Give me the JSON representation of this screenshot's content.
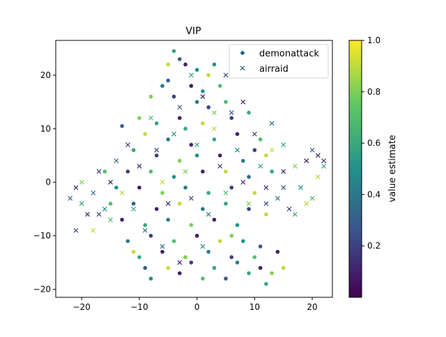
{
  "chart_data": {
    "type": "scatter",
    "title": "VIP",
    "xlabel": "",
    "ylabel": "",
    "xlim": [
      -24.5,
      23.5
    ],
    "ylim": [
      -21.5,
      26.5
    ],
    "xticks": [
      -20,
      -10,
      0,
      10,
      20
    ],
    "yticks": [
      -20,
      -10,
      0,
      10,
      20
    ],
    "legend_position": "top-right",
    "colorbar": {
      "label": "value estimate",
      "range": [
        0.0,
        1.0
      ],
      "ticks": [
        0.2,
        0.4,
        0.6,
        0.8,
        1.0
      ],
      "tick_labels": [
        "0.2",
        "0.4",
        "0.6",
        "0.8",
        "1.0"
      ],
      "colormap": "viridis",
      "colors": [
        "#440154",
        "#3b528b",
        "#21918c",
        "#5ec962",
        "#fde725"
      ]
    },
    "series": [
      {
        "name": "demonattack",
        "marker": "circle",
        "points": [
          [
            -4,
            24.5,
            0.6
          ],
          [
            -3,
            23,
            0.3
          ],
          [
            -5,
            22,
            0.9
          ],
          [
            -2,
            22,
            0.1
          ],
          [
            0,
            21,
            0.5
          ],
          [
            2,
            20,
            0.9
          ],
          [
            -6,
            18,
            0.4
          ],
          [
            -1,
            18,
            0.1
          ],
          [
            1,
            17,
            0.5
          ],
          [
            4,
            18,
            0.7
          ],
          [
            -8,
            16,
            0.8
          ],
          [
            -4,
            16,
            0.2
          ],
          [
            0,
            15,
            0.4
          ],
          [
            2,
            14,
            0.2
          ],
          [
            5,
            15,
            0.7
          ],
          [
            -10,
            12,
            0.8
          ],
          [
            -7,
            11,
            0.6
          ],
          [
            -3,
            12,
            0.1
          ],
          [
            1,
            11,
            0.9
          ],
          [
            6,
            12,
            0.2
          ],
          [
            9,
            13,
            0.6
          ],
          [
            -13,
            10.5,
            0.3
          ],
          [
            -9,
            9,
            0.9
          ],
          [
            -5,
            8,
            0.4
          ],
          [
            -1,
            7,
            0.1
          ],
          [
            3,
            8,
            0.6
          ],
          [
            7,
            9,
            0.1
          ],
          [
            11,
            8,
            0.7
          ],
          [
            -11,
            6,
            0.6
          ],
          [
            -7,
            5,
            0.2
          ],
          [
            -3,
            4,
            0.8
          ],
          [
            0,
            5,
            0.5
          ],
          [
            4,
            5,
            0.1
          ],
          [
            8,
            4,
            0.4
          ],
          [
            12,
            5,
            0.9
          ],
          [
            -12,
            2,
            0.2
          ],
          [
            -8,
            2,
            0.7
          ],
          [
            -4,
            1,
            0.5
          ],
          [
            1,
            2,
            0.1
          ],
          [
            5,
            2,
            0.9
          ],
          [
            9,
            1,
            0.3
          ],
          [
            13,
            2,
            0.6
          ],
          [
            -14,
            -1,
            0.5
          ],
          [
            -10,
            -1,
            0.1
          ],
          [
            -6,
            -2,
            0.8
          ],
          [
            -2,
            -1,
            0.4
          ],
          [
            2,
            -2,
            0.6
          ],
          [
            6,
            -1,
            0.2
          ],
          [
            10,
            -2,
            0.9
          ],
          [
            -15,
            -4,
            0.7
          ],
          [
            -11,
            -4,
            0.3
          ],
          [
            -7,
            -5,
            0.1
          ],
          [
            -3,
            -4,
            0.9
          ],
          [
            1,
            -5,
            0.4
          ],
          [
            5,
            -4,
            0.6
          ],
          [
            9,
            -5,
            0.2
          ],
          [
            -13,
            -7,
            0.1
          ],
          [
            -9,
            -8,
            0.6
          ],
          [
            -5,
            -7,
            0.4
          ],
          [
            -1,
            -8,
            0.8
          ],
          [
            3,
            -7,
            0.1
          ],
          [
            7,
            -8,
            0.5
          ],
          [
            12,
            -6,
            0.9
          ],
          [
            -12,
            -11,
            0.4
          ],
          [
            -8,
            -10,
            0.2
          ],
          [
            -4,
            -11,
            0.7
          ],
          [
            0,
            -10,
            0.1
          ],
          [
            4,
            -11,
            0.9
          ],
          [
            8,
            -11,
            0.5
          ],
          [
            11,
            -12,
            0.3
          ],
          [
            -10,
            -14,
            0.6
          ],
          [
            -6,
            -13,
            0.1
          ],
          [
            -2,
            -14,
            0.8
          ],
          [
            2,
            -13,
            0.4
          ],
          [
            6,
            -14,
            0.2
          ],
          [
            10,
            -14,
            0.7
          ],
          [
            14,
            -13,
            0.1
          ],
          [
            -9,
            -16,
            0.3
          ],
          [
            -5,
            -16,
            0.9
          ],
          [
            -1,
            -15,
            0.2
          ],
          [
            3,
            -16,
            0.6
          ],
          [
            7,
            -15,
            0.4
          ],
          [
            11,
            -16,
            0.1
          ],
          [
            13,
            -17,
            0.8
          ],
          [
            -8,
            -18,
            0.5
          ],
          [
            -3,
            -17,
            0.1
          ],
          [
            1,
            -18,
            0.7
          ],
          [
            5,
            -18,
            0.3
          ],
          [
            9,
            -17,
            0.6
          ],
          [
            12,
            -19,
            0.6
          ],
          [
            15,
            -16,
            0.9
          ],
          [
            -16,
            2,
            0.7
          ],
          [
            -5,
            19,
            0.3
          ],
          [
            3,
            22,
            0.5
          ],
          [
            10,
            6,
            0.2
          ],
          [
            -2,
            10,
            0.6
          ],
          [
            6,
            -10,
            0.8
          ],
          [
            -11,
            -13,
            0.9
          ]
        ]
      },
      {
        "name": "airraid",
        "marker": "x",
        "points": [
          [
            -22,
            -3,
            0.3
          ],
          [
            -21,
            -1,
            0.1
          ],
          [
            -21,
            -9,
            0.2
          ],
          [
            -20,
            -4,
            0.6
          ],
          [
            -19,
            -6,
            0.1
          ],
          [
            -20,
            0,
            0.8
          ],
          [
            -18,
            -2,
            0.4
          ],
          [
            -18,
            -9,
            0.9
          ],
          [
            -17,
            2,
            0.2
          ],
          [
            -16,
            -5,
            0.5
          ],
          [
            -15,
            0,
            0.1
          ],
          [
            -15,
            -7,
            0.7
          ],
          [
            -14,
            4,
            0.4
          ],
          [
            -13,
            -2,
            0.9
          ],
          [
            -12,
            7,
            0.2
          ],
          [
            -11,
            -5,
            0.6
          ],
          [
            -10,
            3,
            0.1
          ],
          [
            -9,
            -9,
            0.4
          ],
          [
            -8,
            12,
            0.7
          ],
          [
            -7,
            6,
            0.2
          ],
          [
            -6,
            0,
            0.9
          ],
          [
            -5,
            -4,
            0.1
          ],
          [
            -4,
            9,
            0.5
          ],
          [
            -3,
            14,
            0.3
          ],
          [
            -2,
            2,
            0.8
          ],
          [
            -1,
            -3,
            0.2
          ],
          [
            0,
            7,
            0.6
          ],
          [
            1,
            16,
            0.1
          ],
          [
            2,
            -6,
            0.4
          ],
          [
            3,
            10,
            0.9
          ],
          [
            4,
            3,
            0.2
          ],
          [
            5,
            -2,
            0.7
          ],
          [
            6,
            13,
            0.3
          ],
          [
            7,
            6,
            0.5
          ],
          [
            8,
            0,
            0.1
          ],
          [
            9,
            -4,
            0.8
          ],
          [
            10,
            9,
            0.2
          ],
          [
            11,
            3,
            0.6
          ],
          [
            12,
            -1,
            0.1
          ],
          [
            13,
            6,
            0.9
          ],
          [
            14,
            -3,
            0.4
          ],
          [
            15,
            2,
            0.1
          ],
          [
            15,
            7,
            0.6
          ],
          [
            16,
            -5,
            0.2
          ],
          [
            17,
            3,
            0.8
          ],
          [
            18,
            -1,
            0.5
          ],
          [
            19,
            4,
            0.1
          ],
          [
            20,
            -3,
            0.7
          ],
          [
            20,
            6,
            0.3
          ],
          [
            21,
            1,
            0.9
          ],
          [
            21,
            5,
            0.1
          ],
          [
            22,
            4,
            0.2
          ],
          [
            22,
            3,
            0.6
          ],
          [
            13,
            11,
            0.4
          ],
          [
            8,
            15,
            0.1
          ],
          [
            5,
            20,
            0.2
          ],
          [
            -1,
            20,
            0.6
          ],
          [
            3,
            13,
            0.8
          ],
          [
            -6,
            -12,
            0.3
          ],
          [
            -3,
            -15,
            0.1
          ],
          [
            1,
            -12,
            0.5
          ],
          [
            15,
            -1,
            0.3
          ],
          [
            17,
            -6,
            0.6
          ],
          [
            19,
            -4,
            0.9
          ],
          [
            12,
            -4,
            0.2
          ],
          [
            -17,
            -6,
            0.2
          ]
        ]
      }
    ]
  }
}
